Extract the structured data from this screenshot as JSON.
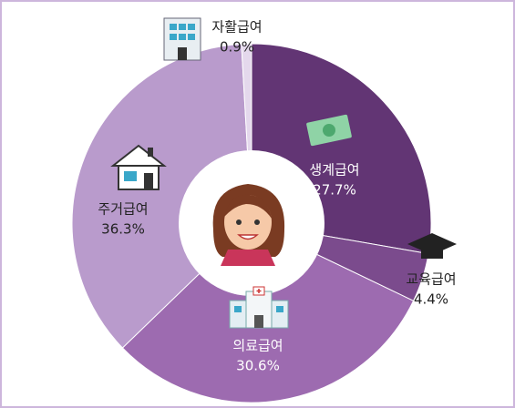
{
  "chart_data": {
    "type": "pie",
    "categories": [
      "생계급여",
      "교육급여",
      "의료급여",
      "주거급여",
      "자활급여"
    ],
    "values": [
      27.7,
      4.4,
      30.6,
      36.3,
      0.9
    ],
    "value_labels": [
      "27.7%",
      "4.4%",
      "30.6%",
      "36.3%",
      "0.9%"
    ],
    "colors": [
      "#623574",
      "#7b4b8d",
      "#9d6bb0",
      "#b99bcc",
      "#e4d8ec"
    ]
  }
}
